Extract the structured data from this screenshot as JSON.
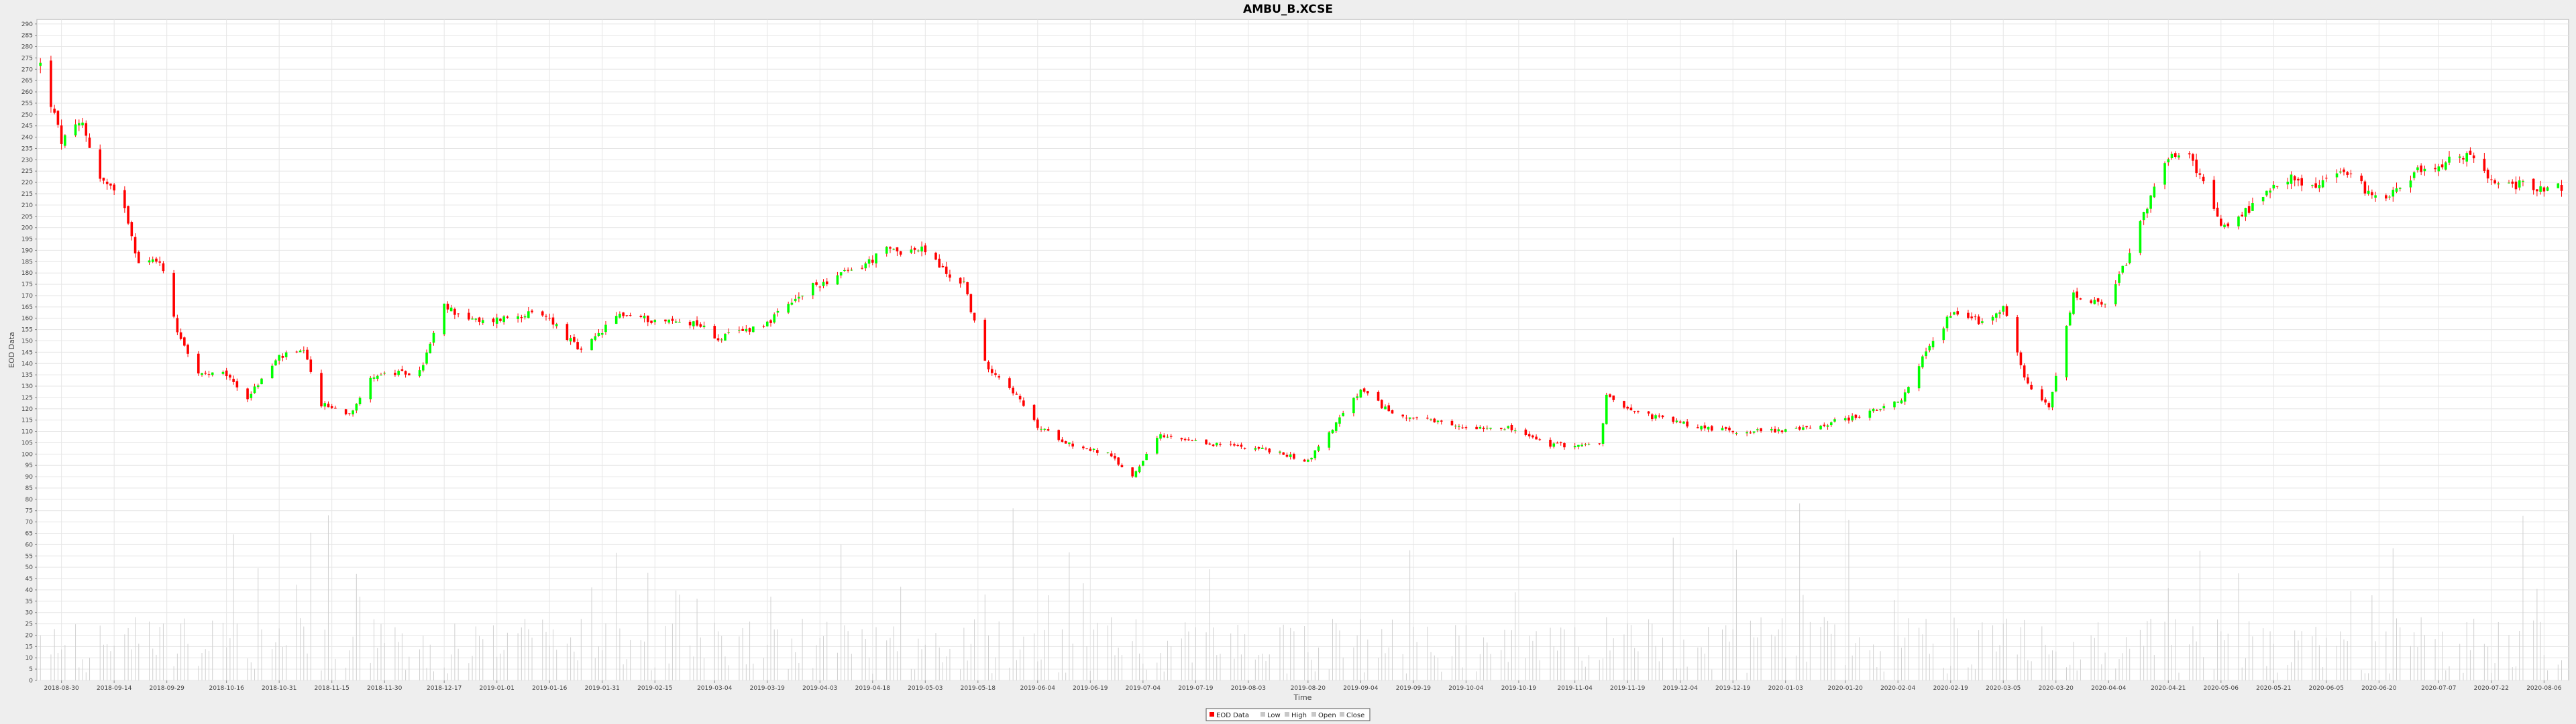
{
  "chart_data": {
    "type": "candlestick",
    "title": "AMBU_B.XCSE",
    "xlabel": "Time",
    "ylabel": "EOD Data",
    "ylim": [
      0,
      292
    ],
    "y_ticks": [
      0,
      5,
      10,
      15,
      20,
      25,
      30,
      35,
      40,
      45,
      50,
      55,
      60,
      65,
      70,
      75,
      80,
      85,
      90,
      95,
      100,
      105,
      110,
      115,
      120,
      125,
      130,
      135,
      140,
      145,
      150,
      155,
      160,
      165,
      170,
      175,
      180,
      185,
      190,
      195,
      200,
      205,
      210,
      215,
      220,
      225,
      230,
      235,
      240,
      245,
      250,
      255,
      260,
      265,
      270,
      275,
      280,
      285,
      290
    ],
    "x_range": [
      "2018-08-23",
      "2020-08-13"
    ],
    "x_ticks": [
      "2018-08-30",
      "2018-09-14",
      "2018-09-29",
      "2018-10-16",
      "2018-10-31",
      "2018-11-15",
      "2018-11-30",
      "2018-12-17",
      "2019-01-01",
      "2019-01-16",
      "2019-01-31",
      "2019-02-15",
      "2019-03-04",
      "2019-03-19",
      "2019-04-03",
      "2019-04-18",
      "2019-05-03",
      "2019-05-18",
      "2019-06-04",
      "2019-06-19",
      "2019-07-04",
      "2019-07-19",
      "2019-08-03",
      "2019-08-20",
      "2019-09-04",
      "2019-09-19",
      "2019-10-04",
      "2019-10-19",
      "2019-11-04",
      "2019-11-19",
      "2019-12-04",
      "2019-12-19",
      "2020-01-03",
      "2020-01-20",
      "2020-02-04",
      "2020-02-19",
      "2020-03-05",
      "2020-03-20",
      "2020-04-04",
      "2020-04-21",
      "2020-05-06",
      "2020-05-21",
      "2020-06-05",
      "2020-06-20",
      "2020-07-07",
      "2020-07-22",
      "2020-08-06"
    ],
    "grid": true,
    "legend": {
      "position": "bottom-center",
      "entries": [
        {
          "label": "EOD Data",
          "color": "#ff0000"
        },
        {
          "label": "Low",
          "color": "#c8c8c8"
        },
        {
          "label": "High",
          "color": "#c8c8c8"
        },
        {
          "label": "Open",
          "color": "#c8c8c8"
        },
        {
          "label": "Close",
          "color": "#c8c8c8"
        }
      ]
    },
    "colors": {
      "up": "#00ff00",
      "down": "#ff0000",
      "wick": "#ff0000",
      "volume": "#d0d0d0",
      "grid": "#e6e6e6"
    },
    "anchors": [
      {
        "date": "2018-08-24",
        "close": 272
      },
      {
        "date": "2018-08-30",
        "close": 238
      },
      {
        "date": "2018-09-05",
        "close": 246
      },
      {
        "date": "2018-09-10",
        "close": 222
      },
      {
        "date": "2018-09-17",
        "close": 210
      },
      {
        "date": "2018-09-21",
        "close": 184
      },
      {
        "date": "2018-09-27",
        "close": 186
      },
      {
        "date": "2018-10-02",
        "close": 155
      },
      {
        "date": "2018-10-08",
        "close": 135
      },
      {
        "date": "2018-10-16",
        "close": 135
      },
      {
        "date": "2018-10-22",
        "close": 125
      },
      {
        "date": "2018-10-31",
        "close": 143
      },
      {
        "date": "2018-11-07",
        "close": 145
      },
      {
        "date": "2018-11-12",
        "close": 122
      },
      {
        "date": "2018-11-20",
        "close": 118
      },
      {
        "date": "2018-11-27",
        "close": 135
      },
      {
        "date": "2018-12-10",
        "close": 136
      },
      {
        "date": "2018-12-17",
        "close": 165
      },
      {
        "date": "2018-12-27",
        "close": 158
      },
      {
        "date": "2019-01-09",
        "close": 162
      },
      {
        "date": "2019-01-16",
        "close": 160
      },
      {
        "date": "2019-01-25",
        "close": 145
      },
      {
        "date": "2019-02-05",
        "close": 162
      },
      {
        "date": "2019-02-15",
        "close": 159
      },
      {
        "date": "2019-02-27",
        "close": 158
      },
      {
        "date": "2019-03-05",
        "close": 151
      },
      {
        "date": "2019-03-19",
        "close": 158
      },
      {
        "date": "2019-04-01",
        "close": 174
      },
      {
        "date": "2019-04-15",
        "close": 183
      },
      {
        "date": "2019-04-22",
        "close": 190
      },
      {
        "date": "2019-05-03",
        "close": 190
      },
      {
        "date": "2019-05-10",
        "close": 178
      },
      {
        "date": "2019-05-14",
        "close": 176
      },
      {
        "date": "2019-05-20",
        "close": 140
      },
      {
        "date": "2019-05-27",
        "close": 130
      },
      {
        "date": "2019-06-04",
        "close": 112
      },
      {
        "date": "2019-06-14",
        "close": 104
      },
      {
        "date": "2019-06-24",
        "close": 100
      },
      {
        "date": "2019-07-01",
        "close": 90
      },
      {
        "date": "2019-07-08",
        "close": 108
      },
      {
        "date": "2019-07-19",
        "close": 105
      },
      {
        "date": "2019-08-05",
        "close": 103
      },
      {
        "date": "2019-08-20",
        "close": 97
      },
      {
        "date": "2019-09-04",
        "close": 128
      },
      {
        "date": "2019-09-13",
        "close": 118
      },
      {
        "date": "2019-10-01",
        "close": 112
      },
      {
        "date": "2019-10-15",
        "close": 112
      },
      {
        "date": "2019-10-28",
        "close": 104
      },
      {
        "date": "2019-11-11",
        "close": 104
      },
      {
        "date": "2019-11-13",
        "close": 125
      },
      {
        "date": "2019-11-25",
        "close": 117
      },
      {
        "date": "2019-12-09",
        "close": 112
      },
      {
        "date": "2019-12-20",
        "close": 110
      },
      {
        "date": "2020-01-08",
        "close": 111
      },
      {
        "date": "2020-01-24",
        "close": 117
      },
      {
        "date": "2020-02-05",
        "close": 123
      },
      {
        "date": "2020-02-10",
        "close": 140
      },
      {
        "date": "2020-02-20",
        "close": 164
      },
      {
        "date": "2020-02-28",
        "close": 158
      },
      {
        "date": "2020-03-05",
        "close": 165
      },
      {
        "date": "2020-03-12",
        "close": 130
      },
      {
        "date": "2020-03-18",
        "close": 120
      },
      {
        "date": "2020-03-25",
        "close": 170
      },
      {
        "date": "2020-04-03",
        "close": 165
      },
      {
        "date": "2020-04-09",
        "close": 185
      },
      {
        "date": "2020-04-14",
        "close": 205
      },
      {
        "date": "2020-04-21",
        "close": 232
      },
      {
        "date": "2020-04-28",
        "close": 230
      },
      {
        "date": "2020-05-06",
        "close": 200
      },
      {
        "date": "2020-05-14",
        "close": 208
      },
      {
        "date": "2020-05-25",
        "close": 222
      },
      {
        "date": "2020-06-01",
        "close": 218
      },
      {
        "date": "2020-06-10",
        "close": 225
      },
      {
        "date": "2020-06-20",
        "close": 212
      },
      {
        "date": "2020-07-01",
        "close": 225
      },
      {
        "date": "2020-07-16",
        "close": 232
      },
      {
        "date": "2020-07-22",
        "close": 220
      },
      {
        "date": "2020-08-06",
        "close": 218
      },
      {
        "date": "2020-08-12",
        "close": 218
      }
    ]
  }
}
